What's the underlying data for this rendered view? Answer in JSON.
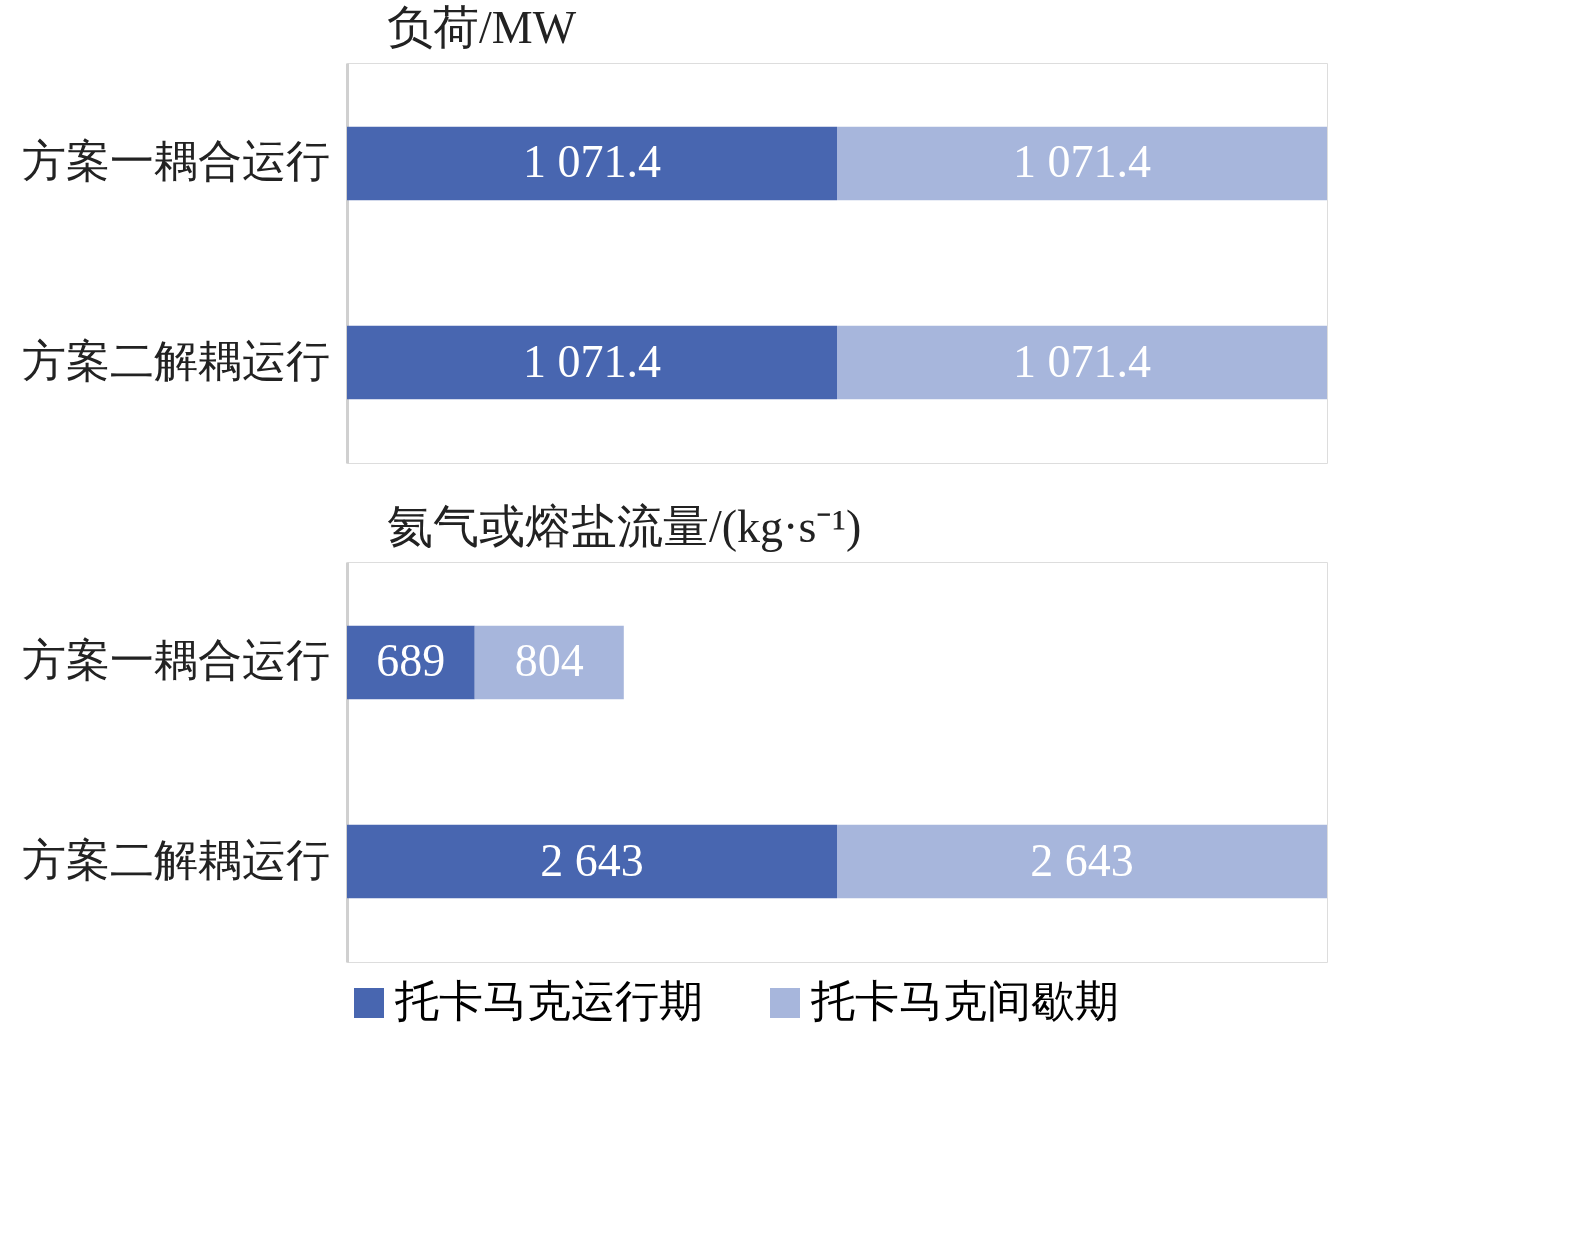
{
  "chart_data": [
    {
      "type": "bar",
      "orientation": "horizontal",
      "stacked": true,
      "title": "负荷/MW",
      "categories": [
        "方案一耦合运行",
        "方案二解耦运行"
      ],
      "tick_labels": "y",
      "legend": "bottom",
      "series": [
        {
          "name": "托卡马克运行期",
          "color": "#4866b0",
          "values": [
            1071.4,
            1071.4
          ],
          "value_labels": [
            "1 071.4",
            "1 071.4"
          ]
        },
        {
          "name": "托卡马克间歇期",
          "color": "#a7b6dc",
          "values": [
            1071.4,
            1071.4
          ],
          "value_labels": [
            "1 071.4",
            "1 071.4"
          ]
        }
      ]
    },
    {
      "type": "bar",
      "orientation": "horizontal",
      "stacked": true,
      "title": "氦气或熔盐流量/(kg·s⁻¹)",
      "categories": [
        "方案一耦合运行",
        "方案二解耦运行"
      ],
      "tick_labels": "y",
      "legend": "bottom",
      "series": [
        {
          "name": "托卡马克运行期",
          "color": "#4866b0",
          "values": [
            689,
            2643
          ],
          "value_labels": [
            "689",
            "2 643"
          ]
        },
        {
          "name": "托卡马克间歇期",
          "color": "#a7b6dc",
          "values": [
            804,
            2643
          ],
          "value_labels": [
            "804",
            "2 643"
          ]
        }
      ]
    }
  ]
}
